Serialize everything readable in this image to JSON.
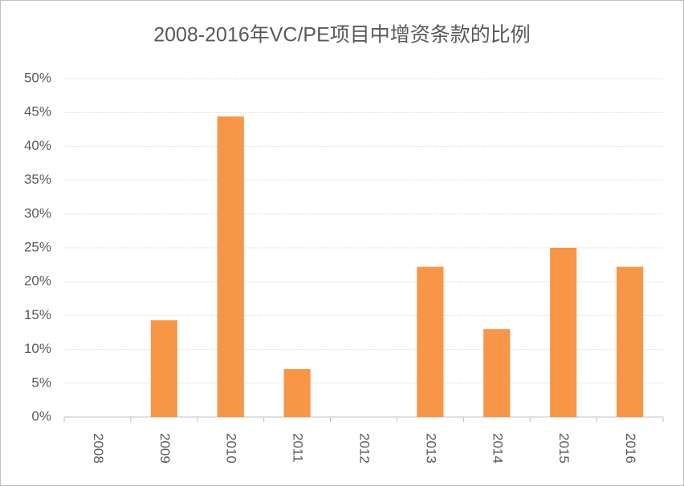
{
  "chart_data": {
    "type": "bar",
    "title": "2008-2016年VC/PE项目中增资条款的比例",
    "categories": [
      "2008",
      "2009",
      "2010",
      "2011",
      "2012",
      "2013",
      "2014",
      "2015",
      "2016"
    ],
    "values": [
      0,
      14.3,
      44.4,
      7.1,
      0,
      22.2,
      13,
      25,
      22.2
    ],
    "color": "#f79646",
    "ylim": [
      0,
      50
    ],
    "yticks": [
      {
        "value": 0,
        "label": "0%"
      },
      {
        "value": 5,
        "label": "5%"
      },
      {
        "value": 10,
        "label": "10%"
      },
      {
        "value": 15,
        "label": "15%"
      },
      {
        "value": 20,
        "label": "20%"
      },
      {
        "value": 25,
        "label": "25%"
      },
      {
        "value": 30,
        "label": "30%"
      },
      {
        "value": 35,
        "label": "35%"
      },
      {
        "value": 40,
        "label": "40%"
      },
      {
        "value": 45,
        "label": "45%"
      },
      {
        "value": 50,
        "label": "50%"
      }
    ],
    "grid": true
  }
}
